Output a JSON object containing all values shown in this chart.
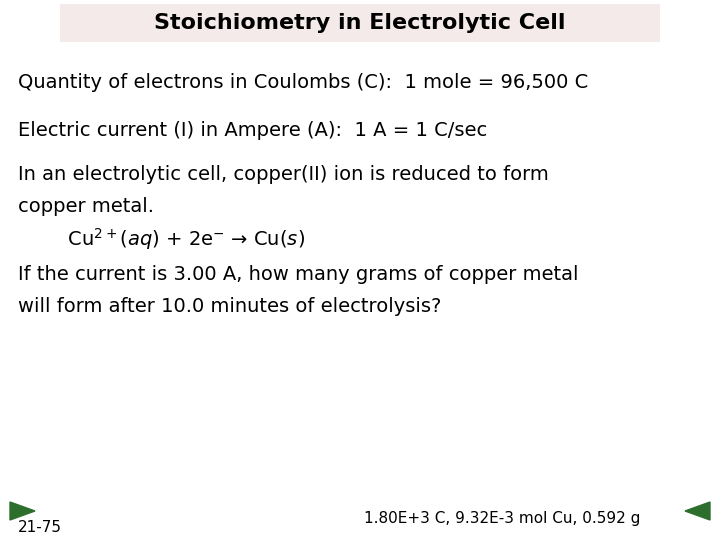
{
  "title": "Stoichiometry in Electrolytic Cell",
  "title_bg_color": "#f5eaea",
  "bg_color": "#ffffff",
  "line1": "Quantity of electrons in Coulombs (C):  1 mole = 96,500 C",
  "line2": "Electric current (I) in Ampere (A):  1 A = 1 C/sec",
  "line3a": "In an electrolytic cell, copper(II) ion is reduced to form",
  "line3b": "copper metal.",
  "line4": "        Cu$^{2+}$($aq$) + 2e$^{-}$ → Cu($s$)",
  "line5a": "If the current is 3.00 A, how many grams of copper metal",
  "line5b": "will form after 10.0 minutes of electrolysis?",
  "footer_left": "21-75",
  "footer_right": "1.80E+3 C, 9.32E-3 mol Cu, 0.592 g",
  "nav_color": "#2d6e2d",
  "text_color": "#000000",
  "title_fontsize": 16,
  "body_fontsize": 14,
  "footer_fontsize": 11
}
